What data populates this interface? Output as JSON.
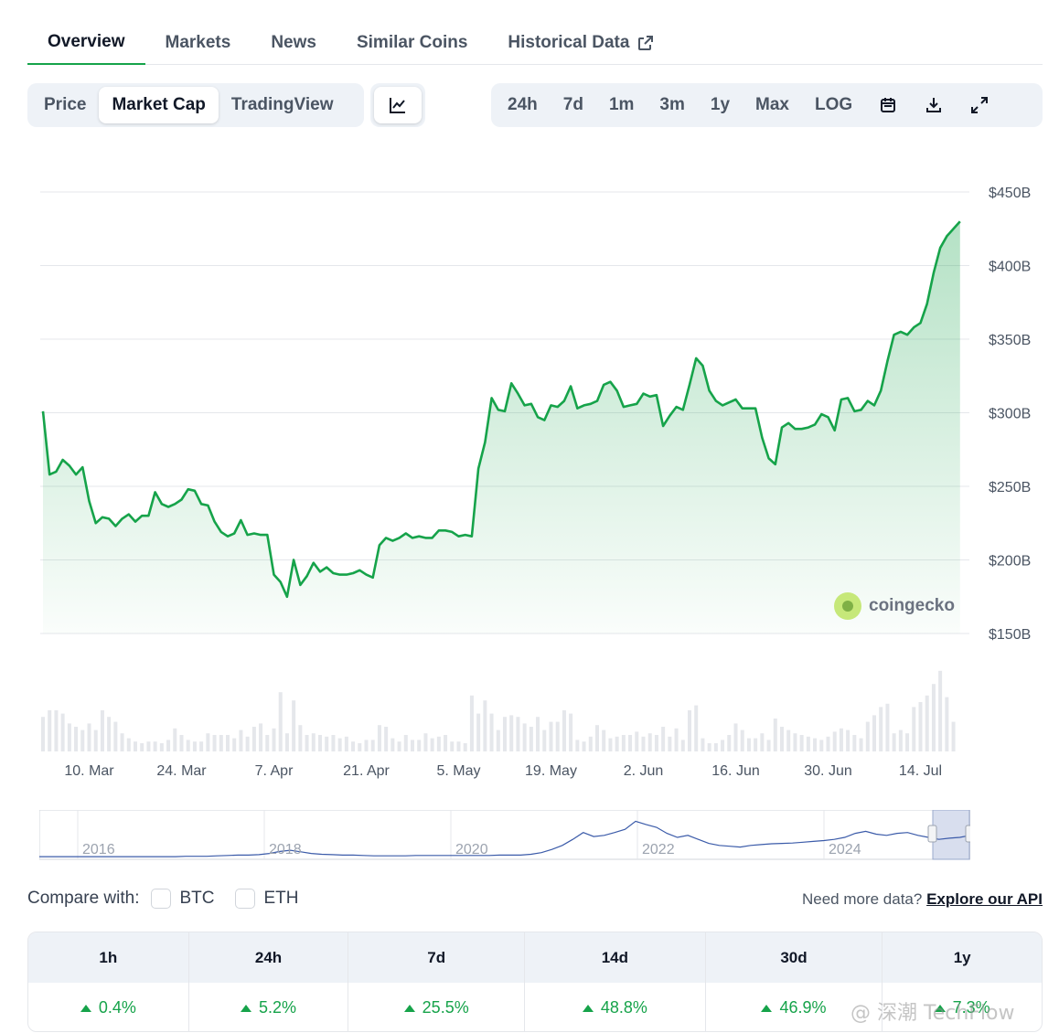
{
  "tabs": [
    {
      "label": "Overview",
      "active": true
    },
    {
      "label": "Markets"
    },
    {
      "label": "News"
    },
    {
      "label": "Similar Coins"
    },
    {
      "label": "Historical Data",
      "icon": "external-link-icon"
    }
  ],
  "toolbar": {
    "views": [
      {
        "label": "Price"
      },
      {
        "label": "Market Cap",
        "active": true
      },
      {
        "label": "TradingView"
      }
    ],
    "chart_type_icon": "line-chart-icon",
    "ranges": [
      "24h",
      "7d",
      "1m",
      "3m",
      "1y",
      "Max",
      "LOG"
    ],
    "tool_icons": [
      "calendar-icon",
      "download-icon",
      "expand-icon"
    ]
  },
  "watermark": "coingecko",
  "chart_data": {
    "type": "area",
    "color": "#16a34a",
    "y_ticks": [
      "$150B",
      "$200B",
      "$250B",
      "$300B",
      "$350B",
      "$400B",
      "$450B"
    ],
    "ylim": [
      150,
      450
    ],
    "x_ticks": [
      "10. Mar",
      "24. Mar",
      "7. Apr",
      "21. Apr",
      "5. May",
      "19. May",
      "2. Jun",
      "16. Jun",
      "30. Jun",
      "14. Jul"
    ],
    "xlim": [
      0,
      140
    ],
    "x_tick_positions": [
      7,
      21,
      35,
      49,
      63,
      77,
      91,
      105,
      119,
      133
    ],
    "series": [
      {
        "values": [
          301,
          258,
          260,
          268,
          264,
          258,
          263,
          240,
          225,
          229,
          228,
          223,
          228,
          231,
          226,
          230,
          230,
          246,
          238,
          236,
          238,
          241,
          248,
          247,
          238,
          237,
          226,
          219,
          216,
          218,
          227,
          217,
          218,
          217,
          217,
          190,
          185,
          175,
          200,
          183,
          189,
          198,
          192,
          195,
          191,
          190,
          190,
          191,
          193,
          190,
          188,
          210,
          215,
          213,
          215,
          218,
          215,
          216,
          215,
          215,
          220,
          220,
          219,
          216,
          217,
          216,
          262,
          280,
          310,
          302,
          301,
          320,
          313,
          305,
          306,
          297,
          295,
          305,
          304,
          308,
          318,
          303,
          305,
          306,
          308,
          319,
          321,
          315,
          304,
          305,
          306,
          313,
          311,
          312,
          291,
          298,
          304,
          302,
          319,
          337,
          332,
          315,
          308,
          305,
          307,
          309,
          303,
          303,
          303,
          283,
          269,
          265,
          290,
          293,
          289,
          289,
          290,
          292,
          299,
          297,
          288,
          309,
          310,
          301,
          302,
          308,
          305,
          315,
          335,
          353,
          355,
          353,
          358,
          361,
          374,
          395,
          412,
          420,
          425,
          430
        ]
      }
    ],
    "volume": [
      0.42,
      0.5,
      0.5,
      0.46,
      0.34,
      0.3,
      0.26,
      0.34,
      0.26,
      0.5,
      0.42,
      0.36,
      0.22,
      0.16,
      0.12,
      0.1,
      0.12,
      0.12,
      0.1,
      0.14,
      0.28,
      0.2,
      0.14,
      0.12,
      0.12,
      0.22,
      0.2,
      0.2,
      0.2,
      0.16,
      0.26,
      0.18,
      0.3,
      0.34,
      0.2,
      0.28,
      0.72,
      0.22,
      0.62,
      0.32,
      0.2,
      0.22,
      0.2,
      0.18,
      0.2,
      0.16,
      0.18,
      0.12,
      0.1,
      0.14,
      0.14,
      0.32,
      0.3,
      0.16,
      0.12,
      0.2,
      0.14,
      0.14,
      0.22,
      0.16,
      0.18,
      0.2,
      0.12,
      0.12,
      0.1,
      0.68,
      0.46,
      0.62,
      0.46,
      0.26,
      0.42,
      0.44,
      0.42,
      0.34,
      0.3,
      0.42,
      0.26,
      0.36,
      0.36,
      0.5,
      0.46,
      0.14,
      0.12,
      0.18,
      0.32,
      0.26,
      0.16,
      0.18,
      0.2,
      0.2,
      0.24,
      0.18,
      0.22,
      0.2,
      0.3,
      0.18,
      0.28,
      0.14,
      0.5,
      0.56,
      0.16,
      0.1,
      0.1,
      0.14,
      0.2,
      0.34,
      0.26,
      0.16,
      0.16,
      0.22,
      0.14,
      0.4,
      0.3,
      0.26,
      0.22,
      0.2,
      0.18,
      0.16,
      0.14,
      0.18,
      0.24,
      0.28,
      0.26,
      0.2,
      0.16,
      0.36,
      0.44,
      0.54,
      0.58,
      0.22,
      0.26,
      0.22,
      0.54,
      0.6,
      0.68,
      0.82,
      0.98,
      0.66,
      0.36
    ],
    "navigator": {
      "labels": [
        "2016",
        "2018",
        "2020",
        "2022",
        "2024"
      ],
      "values": [
        0.02,
        0.02,
        0.02,
        0.02,
        0.02,
        0.02,
        0.02,
        0.02,
        0.02,
        0.02,
        0.02,
        0.02,
        0.02,
        0.02,
        0.03,
        0.03,
        0.03,
        0.04,
        0.05,
        0.06,
        0.06,
        0.07,
        0.1,
        0.15,
        0.18,
        0.14,
        0.1,
        0.08,
        0.07,
        0.06,
        0.06,
        0.05,
        0.04,
        0.04,
        0.04,
        0.04,
        0.05,
        0.05,
        0.05,
        0.05,
        0.05,
        0.05,
        0.05,
        0.05,
        0.06,
        0.06,
        0.06,
        0.08,
        0.12,
        0.2,
        0.3,
        0.45,
        0.62,
        0.52,
        0.55,
        0.62,
        0.7,
        0.9,
        0.82,
        0.75,
        0.6,
        0.5,
        0.55,
        0.45,
        0.35,
        0.3,
        0.28,
        0.26,
        0.3,
        0.32,
        0.34,
        0.35,
        0.36,
        0.38,
        0.4,
        0.42,
        0.45,
        0.5,
        0.6,
        0.65,
        0.58,
        0.55,
        0.6,
        0.62,
        0.55,
        0.5,
        0.45,
        0.48,
        0.5,
        0.55
      ]
    }
  },
  "compare": {
    "label": "Compare with:",
    "options": [
      "BTC",
      "ETH"
    ],
    "more_text": "Need more data?",
    "api_link": "Explore our API"
  },
  "performance": {
    "periods": [
      "1h",
      "24h",
      "7d",
      "14d",
      "30d",
      "1y"
    ],
    "values": [
      "0.4%",
      "5.2%",
      "25.5%",
      "48.8%",
      "46.9%",
      "7.3%"
    ]
  },
  "corner_watermark": "@ 深潮 TechFlow"
}
